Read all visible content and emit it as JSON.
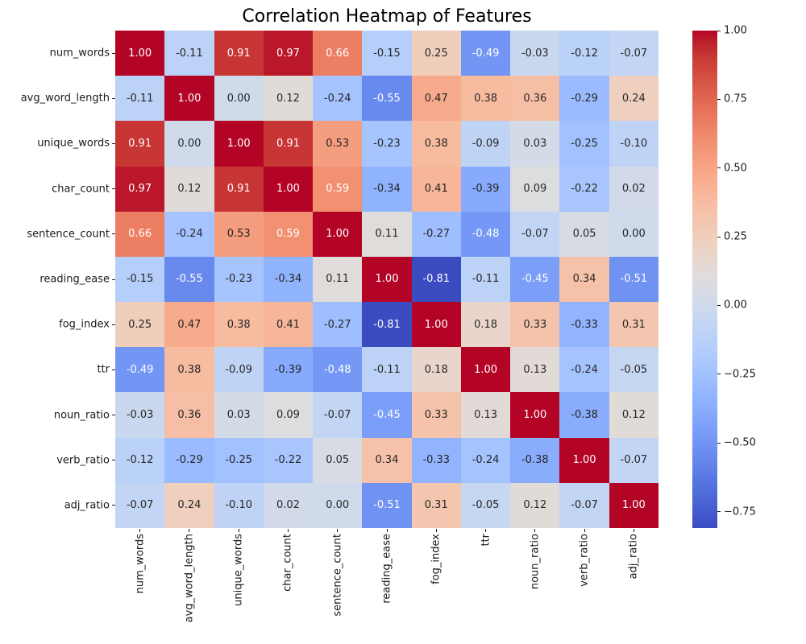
{
  "title": "Correlation Heatmap of Features",
  "chart_data": {
    "type": "heatmap",
    "title": "Correlation Heatmap of Features",
    "features": [
      "num_words",
      "avg_word_length",
      "unique_words",
      "char_count",
      "sentence_count",
      "reading_ease",
      "fog_index",
      "ttr",
      "noun_ratio",
      "verb_ratio",
      "adj_ratio"
    ],
    "matrix": [
      [
        1.0,
        -0.11,
        0.91,
        0.97,
        0.66,
        -0.15,
        0.25,
        -0.49,
        -0.03,
        -0.12,
        -0.07
      ],
      [
        -0.11,
        1.0,
        0.0,
        0.12,
        -0.24,
        -0.55,
        0.47,
        0.38,
        0.36,
        -0.29,
        0.24
      ],
      [
        0.91,
        0.0,
        1.0,
        0.91,
        0.53,
        -0.23,
        0.38,
        -0.09,
        0.03,
        -0.25,
        -0.1
      ],
      [
        0.97,
        0.12,
        0.91,
        1.0,
        0.59,
        -0.34,
        0.41,
        -0.39,
        0.09,
        -0.22,
        0.02
      ],
      [
        0.66,
        -0.24,
        0.53,
        0.59,
        1.0,
        0.11,
        -0.27,
        -0.48,
        -0.07,
        0.05,
        0.0
      ],
      [
        -0.15,
        -0.55,
        -0.23,
        -0.34,
        0.11,
        1.0,
        -0.81,
        -0.11,
        -0.45,
        0.34,
        -0.51
      ],
      [
        0.25,
        0.47,
        0.38,
        0.41,
        -0.27,
        -0.81,
        1.0,
        0.18,
        0.33,
        -0.33,
        0.31
      ],
      [
        -0.49,
        0.38,
        -0.09,
        -0.39,
        -0.48,
        -0.11,
        0.18,
        1.0,
        0.13,
        -0.24,
        -0.05
      ],
      [
        -0.03,
        0.36,
        0.03,
        0.09,
        -0.07,
        -0.45,
        0.33,
        0.13,
        1.0,
        -0.38,
        0.12
      ],
      [
        -0.12,
        -0.29,
        -0.25,
        -0.22,
        0.05,
        0.34,
        -0.33,
        -0.24,
        -0.38,
        1.0,
        -0.07
      ],
      [
        -0.07,
        0.24,
        -0.1,
        0.02,
        0.0,
        -0.51,
        0.31,
        -0.05,
        0.12,
        -0.07,
        1.0
      ]
    ],
    "value_format": "two_decimals",
    "vmin": -0.81,
    "vmax": 1.0,
    "grid": false,
    "legend_position": "colorbar-right",
    "colormap": {
      "name": "coolwarm",
      "anchors": [
        "#3B4CC0",
        "#445ACC",
        "#4D68D7",
        "#5775E1",
        "#6282EA",
        "#6C8EF1",
        "#779AF7",
        "#82A5FB",
        "#8DB0FE",
        "#98B9FF",
        "#A3C2FF",
        "#AEC9FD",
        "#B8D0F9",
        "#C2D5F4",
        "#CCD9EE",
        "#D5DBE6",
        "#DDDDDD",
        "#E5D8D1",
        "#ECD3C5",
        "#F1CCB9",
        "#F5C4AD",
        "#F7BBA0",
        "#F7B194",
        "#F7A687",
        "#F49A7B",
        "#F18D6F",
        "#EC7F63",
        "#E57058",
        "#DE604D",
        "#D55042",
        "#CB3E38",
        "#C0282F",
        "#B40426"
      ]
    },
    "colorbar": {
      "tick_labels": [
        "1.00",
        "0.75",
        "0.50",
        "0.25",
        "0.00",
        "−0.25",
        "−0.50",
        "−0.75"
      ],
      "tick_values": [
        1.0,
        0.75,
        0.5,
        0.25,
        0.0,
        -0.25,
        -0.5,
        -0.75
      ]
    },
    "annotation_text_colors": {
      "light": "#FFFFFF",
      "dark": "#262626",
      "luminance_threshold": 0.408
    }
  }
}
